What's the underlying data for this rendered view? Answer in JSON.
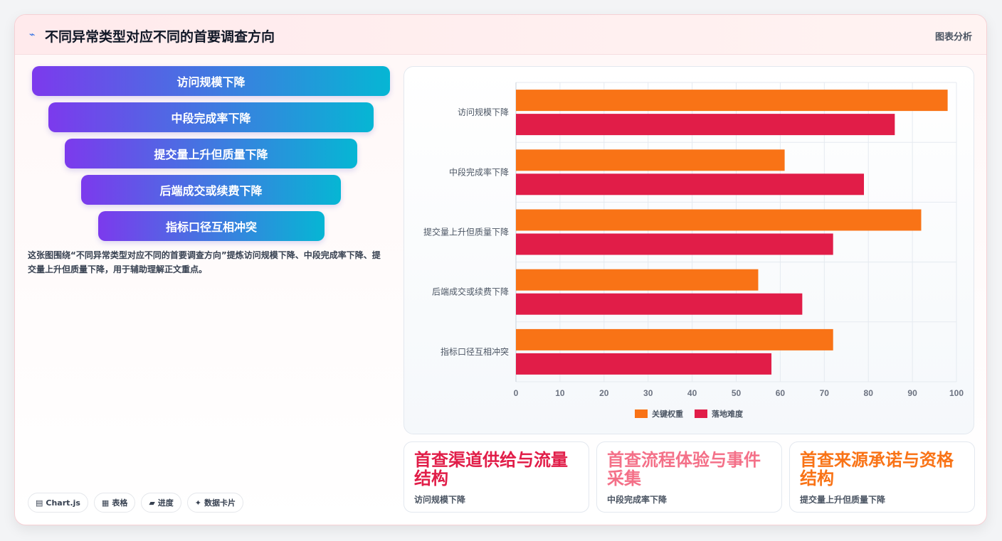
{
  "header": {
    "icon": "zigzag-arrow-icon",
    "title": "不同异常类型对应不同的首要调查方向",
    "tag": "图表分析"
  },
  "funnel": [
    {
      "label": "访问规模下降"
    },
    {
      "label": "中段完成率下降"
    },
    {
      "label": "提交量上升但质量下降"
    },
    {
      "label": "后端成交或续费下降"
    },
    {
      "label": "指标口径互相冲突"
    }
  ],
  "description": "这张图围绕“不同异常类型对应不同的首要调查方向”提炼访问规模下降、中段完成率下降、提交量上升但质量下降，用于辅助理解正文重点。",
  "chips": [
    {
      "icon": "chart-icon",
      "label": "Chart.js"
    },
    {
      "icon": "table-icon",
      "label": "表格"
    },
    {
      "icon": "progress-icon",
      "label": "进度"
    },
    {
      "icon": "sparkle-icon",
      "label": "数据卡片"
    }
  ],
  "chart_data": {
    "type": "bar",
    "orientation": "horizontal",
    "categories": [
      "访问规模下降",
      "中段完成率下降",
      "提交量上升但质量下降",
      "后端成交或续费下降",
      "指标口径互相冲突"
    ],
    "series": [
      {
        "name": "关键权重",
        "color": "#f97316",
        "values": [
          98,
          61,
          92,
          55,
          72
        ]
      },
      {
        "name": "落地难度",
        "color": "#e11d48",
        "values": [
          86,
          79,
          72,
          65,
          58
        ]
      }
    ],
    "xlim": [
      0,
      100
    ],
    "xticks": [
      0,
      10,
      20,
      30,
      40,
      50,
      60,
      70,
      80,
      90,
      100
    ],
    "grid": true,
    "legend": "bottom"
  },
  "cards": [
    {
      "title": "首查渠道供给与流量结构",
      "subtitle": "访问规模下降",
      "color": "#e11d48"
    },
    {
      "title": "首查流程体验与事件采集",
      "subtitle": "中段完成率下降",
      "color": "#f47088"
    },
    {
      "title": "首查来源承诺与资格结构",
      "subtitle": "提交量上升但质量下降",
      "color": "#f97316"
    }
  ]
}
